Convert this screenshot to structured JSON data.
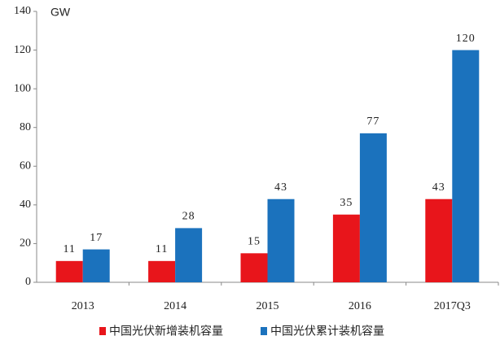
{
  "chart_data": {
    "type": "bar",
    "y_label": "GW",
    "categories": [
      "2013",
      "2014",
      "2015",
      "2016",
      "2017Q3"
    ],
    "series": [
      {
        "name": "中国光伏新增装机容量",
        "color": "#e8151b",
        "values": [
          11,
          11,
          15,
          35,
          43
        ]
      },
      {
        "name": "中国光伏累计装机容量",
        "color": "#1b72bd",
        "values": [
          17,
          28,
          43,
          77,
          120
        ]
      }
    ],
    "ylim": [
      0,
      140
    ],
    "yticks": [
      0,
      20,
      40,
      60,
      80,
      100,
      120,
      140
    ],
    "grid": false
  }
}
